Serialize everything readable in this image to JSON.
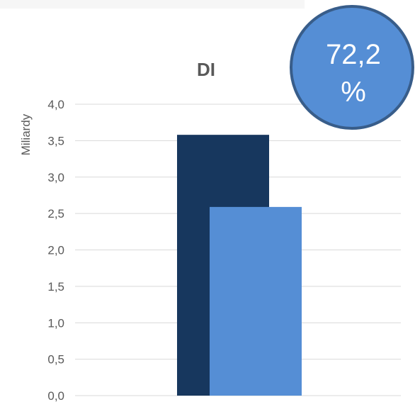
{
  "chart_data": {
    "type": "bar",
    "title": "DI",
    "ylabel": "Miliardy",
    "xlabel": "",
    "ylim": [
      0,
      4.0
    ],
    "yticks": [
      "0,0",
      "0,5",
      "1,0",
      "1,5",
      "2,0",
      "2,5",
      "3,0",
      "3,5",
      "4,0"
    ],
    "categories": [
      ""
    ],
    "series": [
      {
        "values": [
          3.58
        ],
        "color": "#17375e"
      },
      {
        "values": [
          2.59
        ],
        "color": "#558ed5"
      }
    ],
    "grid": true,
    "legend": "none"
  },
  "badge": {
    "line1": "72,2",
    "line2": "%",
    "fill": "#558ed5",
    "stroke": "#385d8a"
  }
}
